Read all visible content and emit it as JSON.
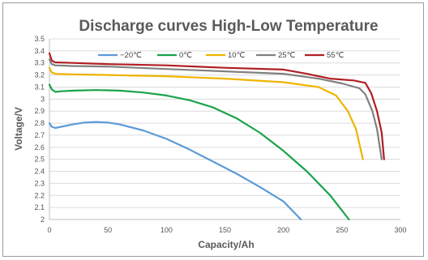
{
  "chart_data": {
    "type": "line",
    "title": "Discharge curves High-Low Temperature",
    "xlabel": "Capacity/Ah",
    "ylabel": "Voltage/V",
    "xlim": [
      0,
      300
    ],
    "ylim": [
      2.0,
      3.5
    ],
    "x_ticks": [
      "0",
      "50",
      "100",
      "150",
      "200",
      "250",
      "300"
    ],
    "y_ticks": [
      "2",
      "2.1",
      "2.2",
      "2.3",
      "2.4",
      "2.5",
      "2.6",
      "2.7",
      "2.8",
      "2.9",
      "3",
      "3.1",
      "3.2",
      "3.3",
      "3.4",
      "3.5"
    ],
    "grid": "horizontal",
    "legend_position": "top",
    "series": [
      {
        "name": "−20℃",
        "color": "#5b9bd5",
        "points": [
          [
            0,
            2.8
          ],
          [
            2,
            2.77
          ],
          [
            5,
            2.76
          ],
          [
            10,
            2.77
          ],
          [
            20,
            2.79
          ],
          [
            30,
            2.805
          ],
          [
            40,
            2.81
          ],
          [
            50,
            2.805
          ],
          [
            60,
            2.79
          ],
          [
            80,
            2.74
          ],
          [
            100,
            2.67
          ],
          [
            120,
            2.58
          ],
          [
            140,
            2.48
          ],
          [
            160,
            2.38
          ],
          [
            180,
            2.27
          ],
          [
            200,
            2.15
          ],
          [
            215,
            2.0
          ]
        ]
      },
      {
        "name": "0℃",
        "color": "#1aa34a",
        "points": [
          [
            0,
            3.12
          ],
          [
            2,
            3.08
          ],
          [
            5,
            3.06
          ],
          [
            10,
            3.065
          ],
          [
            20,
            3.07
          ],
          [
            40,
            3.075
          ],
          [
            60,
            3.07
          ],
          [
            80,
            3.055
          ],
          [
            100,
            3.03
          ],
          [
            120,
            2.99
          ],
          [
            140,
            2.93
          ],
          [
            160,
            2.84
          ],
          [
            180,
            2.72
          ],
          [
            200,
            2.57
          ],
          [
            220,
            2.4
          ],
          [
            240,
            2.2
          ],
          [
            256,
            2.0
          ]
        ]
      },
      {
        "name": "10℃",
        "color": "#f0b400",
        "points": [
          [
            0,
            3.26
          ],
          [
            2,
            3.22
          ],
          [
            5,
            3.21
          ],
          [
            20,
            3.205
          ],
          [
            50,
            3.2
          ],
          [
            100,
            3.19
          ],
          [
            150,
            3.17
          ],
          [
            200,
            3.14
          ],
          [
            230,
            3.1
          ],
          [
            245,
            3.03
          ],
          [
            255,
            2.9
          ],
          [
            262,
            2.75
          ],
          [
            268,
            2.5
          ]
        ]
      },
      {
        "name": "25℃",
        "color": "#808080",
        "points": [
          [
            0,
            3.33
          ],
          [
            2,
            3.29
          ],
          [
            5,
            3.28
          ],
          [
            20,
            3.275
          ],
          [
            50,
            3.27
          ],
          [
            100,
            3.25
          ],
          [
            150,
            3.23
          ],
          [
            200,
            3.21
          ],
          [
            230,
            3.17
          ],
          [
            250,
            3.13
          ],
          [
            265,
            3.09
          ],
          [
            270,
            3.04
          ],
          [
            276,
            2.9
          ],
          [
            280,
            2.75
          ],
          [
            284,
            2.5
          ]
        ]
      },
      {
        "name": "55℃",
        "color": "#b01e23",
        "points": [
          [
            0,
            3.38
          ],
          [
            2,
            3.32
          ],
          [
            5,
            3.305
          ],
          [
            20,
            3.3
          ],
          [
            50,
            3.29
          ],
          [
            100,
            3.28
          ],
          [
            150,
            3.26
          ],
          [
            200,
            3.245
          ],
          [
            220,
            3.21
          ],
          [
            240,
            3.17
          ],
          [
            260,
            3.155
          ],
          [
            270,
            3.135
          ],
          [
            275,
            3.05
          ],
          [
            280,
            2.9
          ],
          [
            284,
            2.72
          ],
          [
            286,
            2.5
          ]
        ]
      }
    ]
  }
}
